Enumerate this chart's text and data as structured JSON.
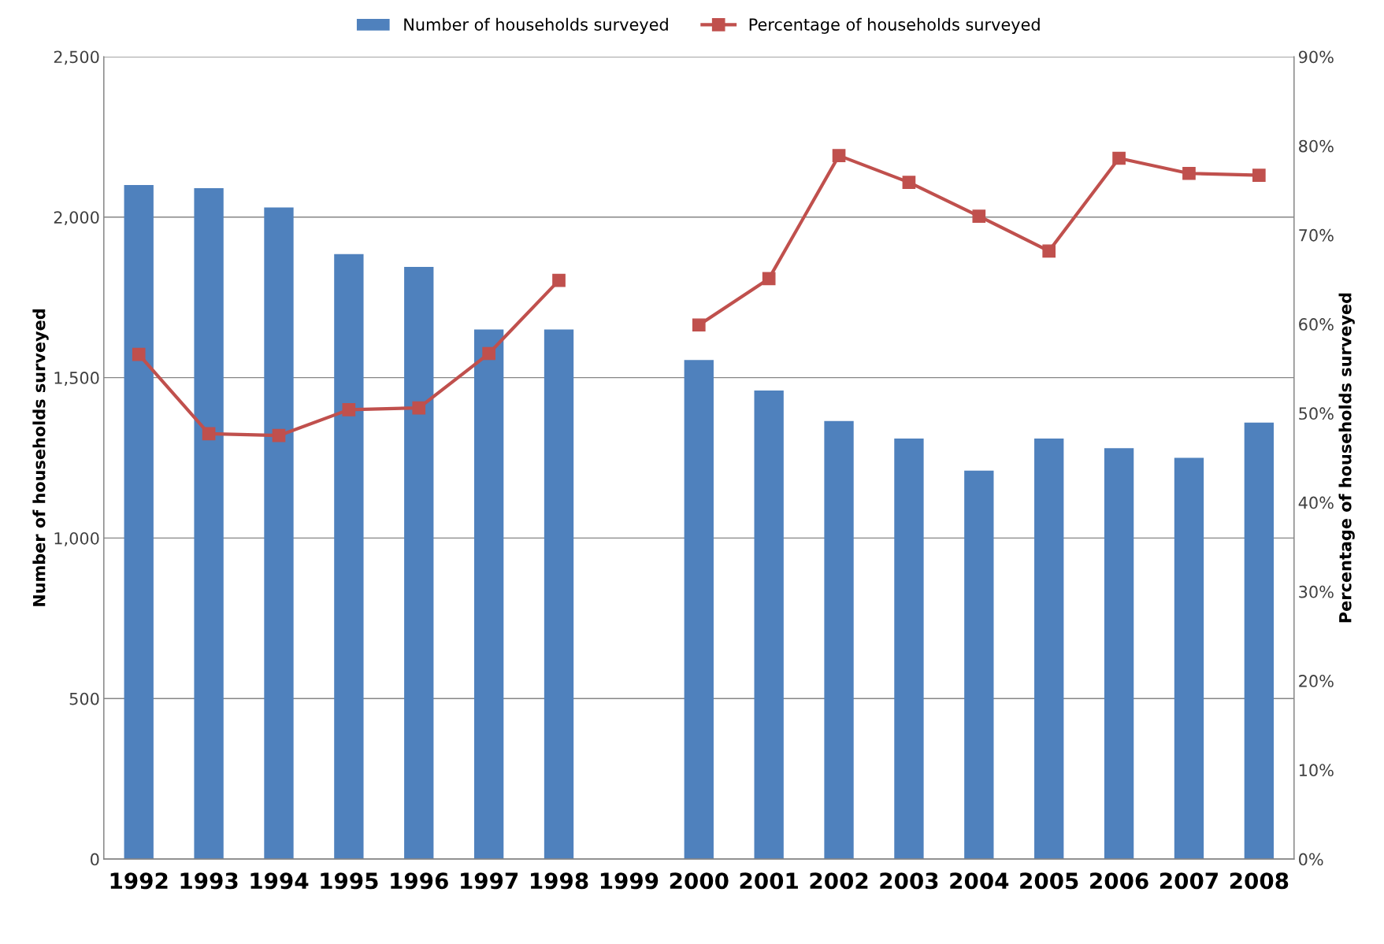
{
  "chart_data": {
    "type": "bar",
    "categories": [
      "1992",
      "1993",
      "1994",
      "1995",
      "1996",
      "1997",
      "1998",
      "1999",
      "2000",
      "2001",
      "2002",
      "2003",
      "2004",
      "2005",
      "2006",
      "2007",
      "2008"
    ],
    "series": [
      {
        "name": "Number of households surveyed",
        "color": "#4f81bd",
        "values": [
          2100,
          2090,
          2030,
          1885,
          1845,
          1650,
          1650,
          null,
          1555,
          1460,
          1365,
          1310,
          1210,
          1310,
          1280,
          1250,
          1360
        ]
      },
      {
        "name": "Percentage of households surveyed",
        "type": "line",
        "axis": "y2",
        "color": "#c0504d",
        "marker": "square",
        "values": [
          56.6,
          47.7,
          47.5,
          50.4,
          50.6,
          56.7,
          64.9,
          null,
          59.9,
          65.1,
          78.9,
          75.9,
          72.1,
          68.2,
          78.6,
          76.9,
          76.7
        ]
      }
    ],
    "ylabel": "Number of households surveyed",
    "y2label": "Percentage of households surveyed",
    "ylim": [
      0,
      2500
    ],
    "yticks": [
      0,
      {
        "value": 500,
        "label": "500"
      },
      {
        "value": 1000,
        "label": "1,000"
      },
      {
        "value": 1500,
        "label": "1,500"
      },
      {
        "value": 2000,
        "label": "2,000"
      },
      {
        "value": 2500,
        "label": "2,500"
      }
    ],
    "y2lim": [
      0,
      90
    ],
    "y2ticks": [
      {
        "value": 0,
        "label": "0%"
      },
      {
        "value": 10,
        "label": "10%"
      },
      {
        "value": 20,
        "label": "20%"
      },
      {
        "value": 30,
        "label": "30%"
      },
      {
        "value": 40,
        "label": "40%"
      },
      {
        "value": 50,
        "label": "50%"
      },
      {
        "value": 60,
        "label": "60%"
      },
      {
        "value": 70,
        "label": "70%"
      },
      {
        "value": 80,
        "label": "80%"
      },
      {
        "value": 90,
        "label": "90%"
      }
    ],
    "grid": "y",
    "legend": "top"
  }
}
